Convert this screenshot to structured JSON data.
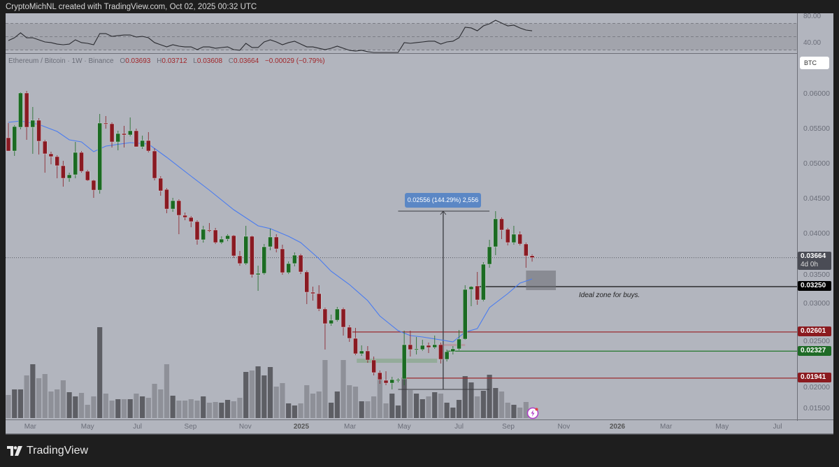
{
  "header": {
    "attribution": "CryptoMichNL created with TradingView.com, Oct 02, 2025 00:32 UTC"
  },
  "legend": {
    "symbol": "Ethereum / Bitcoin · 1W · Binance",
    "o_label": "O",
    "o": "0.03693",
    "h_label": "H",
    "h": "0.03712",
    "l_label": "L",
    "l": "0.03608",
    "c_label": "C",
    "c": "0.03664",
    "change": "−0.00029 (−0.79%)"
  },
  "currency_badge": "BTC",
  "rsi_axis": {
    "top": "80.00",
    "bottom": "40.00"
  },
  "price_tags": {
    "last": "0.03664",
    "countdown": "4d 0h",
    "level1": "0.03250",
    "level2": "0.02601",
    "level3": "0.02327",
    "level4": "0.01941"
  },
  "measure_label": "0.02556 (144.29%) 2,556",
  "annotation": "Ideal zone for buys.",
  "footer": {
    "brand": "TradingView"
  },
  "colors": {
    "up": "#1b6b22",
    "down": "#8a1a22",
    "ma": "#4a7cf0",
    "bg": "#b2b5be"
  },
  "chart_data": {
    "type": "candlestick",
    "title": "Ethereum / Bitcoin · 1W · Binance",
    "ylim": [
      0.0128,
      0.0657
    ],
    "y_ticks": [
      "0.06000",
      "0.05500",
      "0.05000",
      "0.04500",
      "0.04000",
      "0.03500",
      "0.03000",
      "0.02500",
      "0.02000",
      "0.01500"
    ],
    "x_ticks": [
      {
        "label": "Mar",
        "week": 3.6
      },
      {
        "label": "May",
        "week": 13
      },
      {
        "label": "Jul",
        "week": 21.2
      },
      {
        "label": "Sep",
        "week": 29.9
      },
      {
        "label": "Nov",
        "week": 38.9
      },
      {
        "label": "2025",
        "week": 48.1,
        "bold": true
      },
      {
        "label": "Mar",
        "week": 56.1
      },
      {
        "label": "May",
        "week": 65
      },
      {
        "label": "Jul",
        "week": 74
      },
      {
        "label": "Sep",
        "week": 82.1
      },
      {
        "label": "Nov",
        "week": 91.2
      },
      {
        "label": "2026",
        "week": 100,
        "bold": true
      },
      {
        "label": "Mar",
        "week": 108
      },
      {
        "label": "May",
        "week": 117.2
      },
      {
        "label": "Jul",
        "week": 126.3
      }
    ],
    "ohlc": [
      [
        0.0538,
        0.0559,
        0.0519,
        0.0519
      ],
      [
        0.0519,
        0.0556,
        0.0512,
        0.0554
      ],
      [
        0.0553,
        0.0603,
        0.055,
        0.0602
      ],
      [
        0.0602,
        0.0605,
        0.0535,
        0.0553
      ],
      [
        0.0553,
        0.0582,
        0.0515,
        0.0563
      ],
      [
        0.0563,
        0.0566,
        0.0514,
        0.0533
      ],
      [
        0.0533,
        0.0535,
        0.0488,
        0.0515
      ],
      [
        0.0515,
        0.0518,
        0.05,
        0.0511
      ],
      [
        0.0511,
        0.0513,
        0.048,
        0.0498
      ],
      [
        0.0498,
        0.0505,
        0.0468,
        0.048
      ],
      [
        0.048,
        0.0488,
        0.0475,
        0.0485
      ],
      [
        0.0485,
        0.0532,
        0.048,
        0.0517
      ],
      [
        0.0517,
        0.0519,
        0.0488,
        0.049
      ],
      [
        0.049,
        0.0492,
        0.0476,
        0.0477
      ],
      [
        0.0477,
        0.0478,
        0.0452,
        0.0463
      ],
      [
        0.0463,
        0.0572,
        0.0458,
        0.0559
      ],
      [
        0.0559,
        0.0569,
        0.0551,
        0.0558
      ],
      [
        0.0558,
        0.056,
        0.0524,
        0.0532
      ],
      [
        0.0532,
        0.0548,
        0.052,
        0.0544
      ],
      [
        0.0544,
        0.0555,
        0.0524,
        0.0542
      ],
      [
        0.0542,
        0.0567,
        0.054,
        0.0548
      ],
      [
        0.0548,
        0.0551,
        0.0525,
        0.0525
      ],
      [
        0.0525,
        0.0541,
        0.0522,
        0.0534
      ],
      [
        0.0534,
        0.0546,
        0.0517,
        0.0519
      ],
      [
        0.0519,
        0.0523,
        0.0477,
        0.048
      ],
      [
        0.048,
        0.0483,
        0.0455,
        0.0462
      ],
      [
        0.0464,
        0.0466,
        0.043,
        0.0436
      ],
      [
        0.0436,
        0.0452,
        0.0432,
        0.0448
      ],
      [
        0.0448,
        0.045,
        0.04,
        0.0427
      ],
      [
        0.0427,
        0.0431,
        0.042,
        0.0424
      ],
      [
        0.0424,
        0.0426,
        0.041,
        0.0418
      ],
      [
        0.0418,
        0.042,
        0.0385,
        0.0392
      ],
      [
        0.0392,
        0.0412,
        0.0388,
        0.0407
      ],
      [
        0.0406,
        0.0416,
        0.0403,
        0.0405
      ],
      [
        0.0406,
        0.0409,
        0.0386,
        0.0388
      ],
      [
        0.0388,
        0.0397,
        0.0386,
        0.0393
      ],
      [
        0.0393,
        0.04,
        0.039,
        0.0398
      ],
      [
        0.0398,
        0.0399,
        0.0366,
        0.0369
      ],
      [
        0.0369,
        0.0376,
        0.0355,
        0.0358
      ],
      [
        0.0358,
        0.0412,
        0.0356,
        0.0397
      ],
      [
        0.0397,
        0.0398,
        0.0338,
        0.0342
      ],
      [
        0.0342,
        0.0355,
        0.0319,
        0.0344
      ],
      [
        0.0344,
        0.0386,
        0.0342,
        0.0382
      ],
      [
        0.0382,
        0.0408,
        0.0377,
        0.0396
      ],
      [
        0.0396,
        0.04,
        0.0374,
        0.0379
      ],
      [
        0.0379,
        0.0385,
        0.0342,
        0.0345
      ],
      [
        0.0345,
        0.0361,
        0.0343,
        0.0358
      ],
      [
        0.0358,
        0.0374,
        0.0354,
        0.037
      ],
      [
        0.037,
        0.0372,
        0.0343,
        0.0346
      ],
      [
        0.0346,
        0.0348,
        0.03,
        0.0317
      ],
      [
        0.0317,
        0.0325,
        0.0305,
        0.0315
      ],
      [
        0.0315,
        0.0327,
        0.029,
        0.0293
      ],
      [
        0.0293,
        0.0295,
        0.0235,
        0.0272
      ],
      [
        0.0272,
        0.0285,
        0.0269,
        0.0277
      ],
      [
        0.0277,
        0.0296,
        0.0275,
        0.0293
      ],
      [
        0.0293,
        0.0295,
        0.0255,
        0.0267
      ],
      [
        0.0267,
        0.027,
        0.0246,
        0.0251
      ],
      [
        0.0251,
        0.0266,
        0.0227,
        0.0229
      ],
      [
        0.0229,
        0.0241,
        0.0226,
        0.0233
      ],
      [
        0.0233,
        0.024,
        0.0216,
        0.022
      ],
      [
        0.022,
        0.0225,
        0.0198,
        0.0202
      ],
      [
        0.0202,
        0.0205,
        0.0186,
        0.0192
      ],
      [
        0.0191,
        0.0204,
        0.0184,
        0.0187
      ],
      [
        0.0187,
        0.0196,
        0.0178,
        0.0192
      ],
      [
        0.0192,
        0.0194,
        0.0188,
        0.0192
      ],
      [
        0.0193,
        0.0262,
        0.0184,
        0.0242
      ],
      [
        0.0242,
        0.0262,
        0.0225,
        0.0235
      ],
      [
        0.0236,
        0.0253,
        0.0228,
        0.0236
      ],
      [
        0.0235,
        0.0249,
        0.0233,
        0.0241
      ],
      [
        0.0241,
        0.0245,
        0.023,
        0.0238
      ],
      [
        0.0238,
        0.0255,
        0.0236,
        0.0242
      ],
      [
        0.0242,
        0.0245,
        0.0215,
        0.0221
      ],
      [
        0.0221,
        0.0235,
        0.0218,
        0.0232
      ],
      [
        0.0232,
        0.024,
        0.0228,
        0.0236
      ],
      [
        0.0236,
        0.0263,
        0.0234,
        0.025
      ],
      [
        0.025,
        0.0327,
        0.0249,
        0.0321
      ],
      [
        0.0321,
        0.0326,
        0.0297,
        0.0325
      ],
      [
        0.0326,
        0.0346,
        0.0299,
        0.0306
      ],
      [
        0.0306,
        0.036,
        0.0304,
        0.0357
      ],
      [
        0.0357,
        0.0392,
        0.0352,
        0.0382
      ],
      [
        0.0382,
        0.0433,
        0.037,
        0.0422
      ],
      [
        0.0422,
        0.0424,
        0.0393,
        0.0406
      ],
      [
        0.0407,
        0.0409,
        0.0384,
        0.0388
      ],
      [
        0.0388,
        0.0412,
        0.0385,
        0.04
      ],
      [
        0.04,
        0.0404,
        0.0384,
        0.0386
      ],
      [
        0.0386,
        0.0388,
        0.0352,
        0.0369
      ],
      [
        0.03693,
        0.03712,
        0.03608,
        0.03664
      ]
    ],
    "volume_relative": [
      33,
      41,
      41,
      61,
      77,
      57,
      63,
      38,
      41,
      54,
      37,
      31,
      36,
      19,
      31,
      130,
      35,
      25,
      27,
      27,
      27,
      35,
      31,
      29,
      49,
      41,
      77,
      32,
      25,
      25,
      27,
      25,
      31,
      22,
      23,
      22,
      26,
      24,
      29,
      66,
      68,
      74,
      61,
      73,
      45,
      50,
      21,
      18,
      21,
      47,
      35,
      38,
      83,
      22,
      38,
      83,
      47,
      45,
      24,
      24,
      31,
      59,
      21,
      35,
      18,
      58,
      40,
      35,
      27,
      31,
      37,
      35,
      22,
      15,
      26,
      60,
      51,
      31,
      39,
      62,
      43,
      38,
      22,
      19,
      15,
      23,
      10
    ],
    "ma": [
      [
        0,
        0.056
      ],
      [
        2,
        0.0562
      ],
      [
        5,
        0.0557
      ],
      [
        8,
        0.0547
      ],
      [
        10,
        0.0535
      ],
      [
        12,
        0.0532
      ],
      [
        14,
        0.0518
      ],
      [
        16,
        0.0526
      ],
      [
        20,
        0.0531
      ],
      [
        23,
        0.0529
      ],
      [
        26,
        0.051
      ],
      [
        30,
        0.0483
      ],
      [
        33,
        0.0463
      ],
      [
        37,
        0.0435
      ],
      [
        41,
        0.0412
      ],
      [
        43,
        0.0408
      ],
      [
        46,
        0.0397
      ],
      [
        48,
        0.0388
      ],
      [
        51,
        0.0365
      ],
      [
        53,
        0.0347
      ],
      [
        56,
        0.0328
      ],
      [
        59,
        0.0305
      ],
      [
        61,
        0.0283
      ],
      [
        64,
        0.0262
      ],
      [
        66,
        0.0255
      ],
      [
        68,
        0.0253
      ],
      [
        73,
        0.0246
      ],
      [
        75,
        0.026
      ],
      [
        77,
        0.0265
      ],
      [
        79,
        0.0295
      ],
      [
        82,
        0.0315
      ],
      [
        84,
        0.033
      ],
      [
        86,
        0.0336
      ]
    ],
    "rsi": [
      44.2,
      48.4,
      55.8,
      48.4,
      48.4,
      45.3,
      42.1,
      41.1,
      38.9,
      37.9,
      38.9,
      45.3,
      41.1,
      40,
      37.9,
      54.7,
      54.7,
      50.5,
      51.6,
      52.6,
      52.6,
      49.5,
      50.5,
      48.4,
      41.1,
      37.9,
      34.7,
      37.9,
      35.8,
      34.7,
      34.7,
      30.5,
      34.7,
      34.7,
      32.6,
      33.7,
      34.7,
      30.5,
      29.5,
      40,
      33.7,
      33.7,
      42.1,
      45.3,
      42.1,
      37.9,
      41.1,
      43.2,
      38.9,
      34.7,
      34.7,
      32.6,
      30.5,
      32.6,
      35.8,
      32.6,
      29.5,
      28.4,
      29.5,
      27.4,
      26.3,
      26.3,
      26.3,
      26.3,
      26.3,
      41.1,
      40,
      41.1,
      42.1,
      43.2,
      43.2,
      38.9,
      42.1,
      43.2,
      48.4,
      64.2,
      63.2,
      58.9,
      66.3,
      69.5,
      74.7,
      70.5,
      66.3,
      67.4,
      63.2,
      60,
      58.9
    ],
    "rsi_levels": [
      70,
      50,
      30
    ],
    "levels": [
      {
        "price": 0.0325,
        "from_week": 76.8,
        "color": "#111111"
      },
      {
        "price": 0.02601,
        "from_week": 56.5,
        "color": "#9b2a2e"
      },
      {
        "price": 0.02327,
        "from_week": 72,
        "color": "#2f7d37"
      },
      {
        "price": 0.01941,
        "from_week": 64.6,
        "color": "#9b2a2e"
      }
    ],
    "buy_zone": {
      "week_from": 85,
      "week_to": 89.9,
      "price_from": 0.032,
      "price_to": 0.0348
    },
    "measure": {
      "week": 71.4,
      "week_from": 64,
      "week_to": 79,
      "price_from": 0.0178,
      "price_to": 0.0433
    },
    "bands": [
      {
        "week_from": 57.2,
        "week_to": 70.4,
        "price_from": 0.0216,
        "price_to": 0.0222,
        "color": "rgba(110,160,110,0.45)"
      },
      {
        "week_from": 71,
        "week_to": 75,
        "price_from": 0.024,
        "price_to": 0.0243,
        "color": "rgba(190,130,140,0.5)"
      }
    ],
    "last_price": 0.03664
  }
}
